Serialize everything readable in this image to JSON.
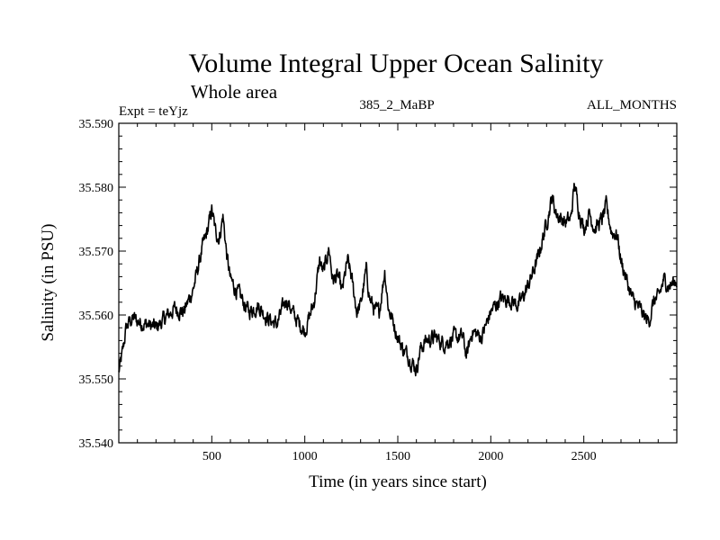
{
  "chart_data": {
    "type": "line",
    "title": "Volume Integral Upper Ocean Salinity",
    "subtitle": "Whole area",
    "annotations": {
      "left": "Expt = teYjz",
      "center": "385_2_MaBP",
      "right": "ALL_MONTHS"
    },
    "xlabel": "Time (in years since start)",
    "ylabel": "Salinity (in PSU)",
    "xlim": [
      0,
      3000
    ],
    "ylim": [
      35.54,
      35.59
    ],
    "xticks": [
      500,
      1000,
      1500,
      2000,
      2500
    ],
    "xtick_labels": [
      "500",
      "1000",
      "1500",
      "2000",
      "2500"
    ],
    "yticks": [
      35.54,
      35.55,
      35.56,
      35.57,
      35.58,
      35.59
    ],
    "ytick_labels": [
      "35.540",
      "35.550",
      "35.560",
      "35.570",
      "35.580",
      "35.590"
    ],
    "grid": false,
    "series": [
      {
        "name": "Salinity",
        "color": "#000000",
        "x": [
          0,
          20,
          40,
          60,
          80,
          100,
          150,
          200,
          250,
          300,
          350,
          400,
          450,
          480,
          500,
          520,
          540,
          560,
          580,
          600,
          650,
          700,
          750,
          800,
          850,
          900,
          950,
          1000,
          1050,
          1080,
          1100,
          1130,
          1150,
          1180,
          1200,
          1230,
          1250,
          1280,
          1300,
          1330,
          1350,
          1380,
          1400,
          1430,
          1450,
          1480,
          1500,
          1530,
          1560,
          1600,
          1620,
          1650,
          1700,
          1750,
          1800,
          1850,
          1870,
          1900,
          1950,
          2000,
          2050,
          2100,
          2150,
          2200,
          2250,
          2300,
          2330,
          2350,
          2380,
          2400,
          2430,
          2450,
          2470,
          2500,
          2530,
          2560,
          2600,
          2620,
          2650,
          2680,
          2700,
          2730,
          2760,
          2800,
          2830,
          2850,
          2880,
          2900,
          2930,
          2960,
          3000
        ],
        "y": [
          35.551,
          35.554,
          35.558,
          35.559,
          35.5595,
          35.559,
          35.5585,
          35.558,
          35.5595,
          35.561,
          35.5605,
          35.564,
          35.5705,
          35.5735,
          35.5765,
          35.573,
          35.572,
          35.5755,
          35.5695,
          35.5655,
          35.563,
          35.5605,
          35.5615,
          35.5595,
          35.5585,
          35.5625,
          35.5595,
          35.5575,
          35.562,
          35.5685,
          35.5665,
          35.5705,
          35.5655,
          35.566,
          35.5635,
          35.5685,
          35.566,
          35.5605,
          35.5615,
          35.567,
          35.5625,
          35.5605,
          35.5605,
          35.567,
          35.561,
          35.5585,
          35.5565,
          35.5545,
          35.5535,
          35.5515,
          35.5545,
          35.556,
          35.5565,
          35.5555,
          35.5565,
          35.5565,
          35.5535,
          35.5575,
          35.5565,
          35.5605,
          35.5625,
          35.5625,
          35.5615,
          35.5645,
          35.5685,
          35.5745,
          35.5785,
          35.576,
          35.575,
          35.5745,
          35.575,
          35.5805,
          35.577,
          35.5735,
          35.576,
          35.5735,
          35.575,
          35.577,
          35.573,
          35.5725,
          35.5685,
          35.5655,
          35.5625,
          35.561,
          35.5595,
          35.559,
          35.5625,
          35.5625,
          35.5655,
          35.5645,
          35.5655
        ]
      }
    ]
  }
}
